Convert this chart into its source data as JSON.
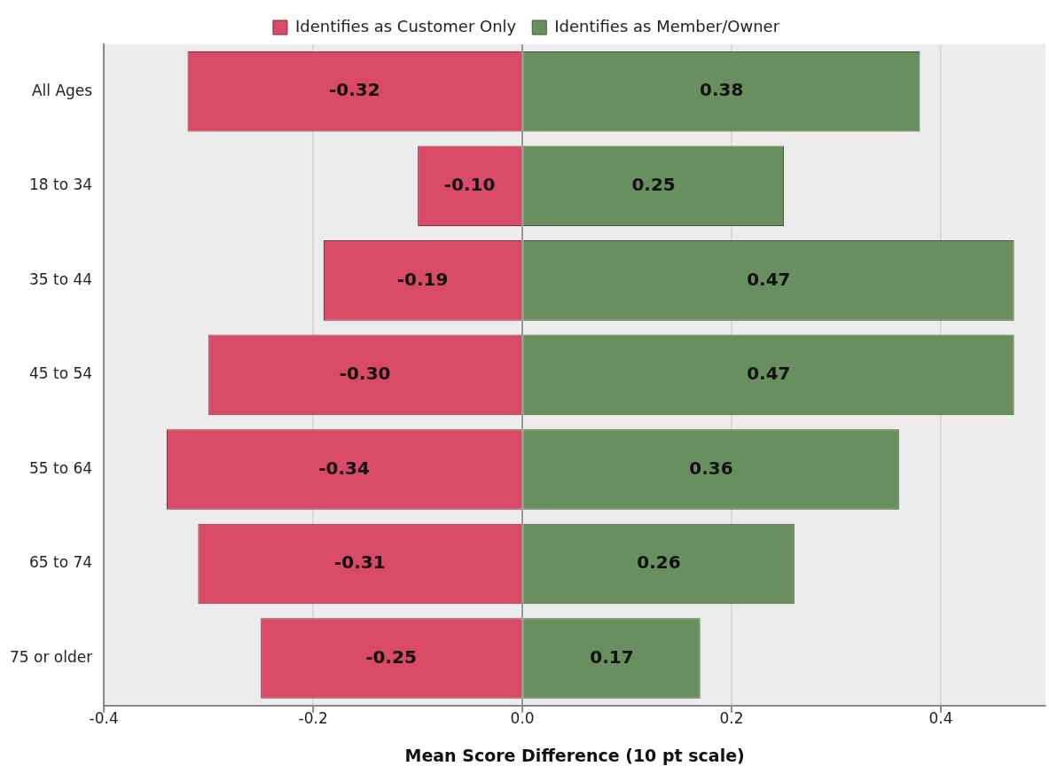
{
  "chart_data": {
    "type": "bar",
    "orientation": "horizontal",
    "stacked": true,
    "xlabel": "Mean Score Difference (10 pt scale)",
    "categories": [
      "All Ages",
      "18 to 34",
      "35 to 44",
      "45 to 54",
      "55 to 64",
      "65 to 74",
      "75 or older"
    ],
    "series": [
      {
        "name": "Identifies as Customer Only",
        "color": "#d94a67",
        "values": [
          -0.32,
          -0.1,
          -0.19,
          -0.3,
          -0.34,
          -0.31,
          -0.25
        ],
        "value_labels": [
          "-0.32",
          "-0.10",
          "-0.19",
          "-0.30",
          "-0.34",
          "-0.31",
          "-0.25"
        ]
      },
      {
        "name": "Identifies as Member/Owner",
        "color": "#6a8f5e",
        "values": [
          0.38,
          0.25,
          0.47,
          0.47,
          0.36,
          0.26,
          0.17
        ],
        "value_labels": [
          "0.38",
          "0.25",
          "0.47",
          "0.47",
          "0.36",
          "0.26",
          "0.17"
        ]
      }
    ],
    "xlim": [
      -0.4,
      0.5
    ],
    "xticks": [
      {
        "value": -0.4,
        "label": "-0.4"
      },
      {
        "value": -0.2,
        "label": "-0.2"
      },
      {
        "value": 0,
        "label": "0.0"
      },
      {
        "value": 0.2,
        "label": "0.2"
      },
      {
        "value": 0.4,
        "label": "0.4"
      }
    ],
    "grid": "x",
    "legend": "top"
  }
}
